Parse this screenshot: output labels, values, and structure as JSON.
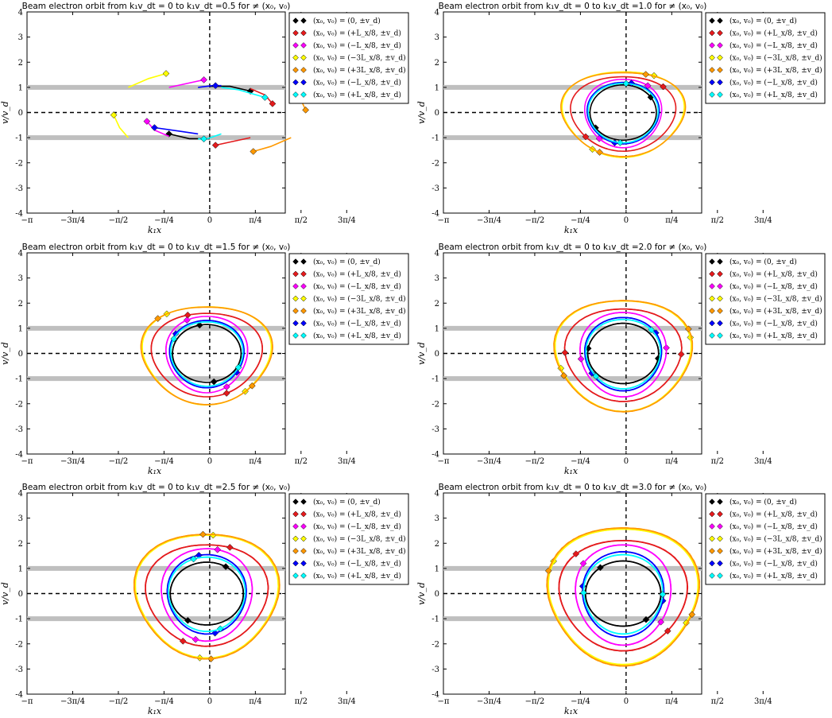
{
  "figure": {
    "background": "#ffffff",
    "band_color": "#bfbfbf"
  },
  "chart_data": [
    {
      "type": "line",
      "title": "Beam electron orbit from k₁v_dt = 0 to k₁v_dt =0.5 for ≠ (x₀, v₀)",
      "xlabel": "k₁x",
      "ylabel": "v/v_d",
      "xlim": [
        -3.1416,
        1.3
      ],
      "ylim": [
        -4,
        4
      ],
      "xticks": [
        "−π",
        "−3π/4",
        "−π/2",
        "−π/4",
        "0",
        "π/4",
        "π/2",
        "3π/4"
      ],
      "yticks": [
        "-4",
        "-3",
        "-2",
        "-1",
        "0",
        "1",
        "2",
        "3",
        "4"
      ],
      "grid": false,
      "legend": "outside-right",
      "bands": [
        1,
        -1
      ],
      "series": [
        {
          "name": "(x₀, v₀) = (0, ±v_d)",
          "color": "#000000",
          "points": [
            [
              0.7,
              0.85
            ],
            [
              0.35,
              1.04
            ],
            [
              0,
              1.04
            ]
          ],
          "points2": [
            [
              -0.7,
              -0.85
            ],
            [
              -0.35,
              -1.04
            ],
            [
              0,
              -1.04
            ]
          ],
          "start": [
            0,
            1
          ],
          "marker": [
            0.7,
            0.85
          ],
          "marker2": [
            -0.7,
            -0.85
          ]
        },
        {
          "name": "(x₀, v₀) = (+L_x/8, ±v_d)",
          "color": "#e41a1c",
          "points": [
            [
              0.7,
              0.95
            ],
            [
              0.95,
              0.7
            ],
            [
              1.08,
              0.35
            ]
          ],
          "points2": [
            [
              0.7,
              -1.0
            ],
            [
              0.4,
              -1.15
            ],
            [
              0.1,
              -1.3
            ]
          ],
          "marker": [
            1.08,
            0.35
          ],
          "marker2": [
            0.1,
            -1.3
          ]
        },
        {
          "name": "(x₀, v₀) = (−L_x/8, ±v_d)",
          "color": "#ff00ff",
          "points": [
            [
              -0.7,
              1.0
            ],
            [
              -0.4,
              1.15
            ],
            [
              -0.1,
              1.3
            ]
          ],
          "points2": [
            [
              -0.7,
              -0.95
            ],
            [
              -0.95,
              -0.7
            ],
            [
              -1.08,
              -0.35
            ]
          ],
          "marker": [
            -0.1,
            1.3
          ],
          "marker2": [
            -1.08,
            -0.35
          ]
        },
        {
          "name": "(x₀, v₀) = (−3L_x/8, ±v_d)",
          "color": "#ffff00",
          "points": [
            [
              -1.4,
              1.0
            ],
            [
              -1.05,
              1.35
            ],
            [
              -0.75,
              1.55
            ]
          ],
          "points2": [
            [
              -1.4,
              -1.0
            ],
            [
              -1.55,
              -0.6
            ],
            [
              -1.65,
              -0.1
            ]
          ],
          "marker": [
            -0.75,
            1.55
          ],
          "marker2": [
            -1.65,
            -0.1
          ]
        },
        {
          "name": "(x₀, v₀) = (+3L_x/8, ±v_d)",
          "color": "#ff9900",
          "points": [
            [
              1.4,
              1.0
            ],
            [
              1.55,
              0.6
            ],
            [
              1.65,
              0.1
            ]
          ],
          "points2": [
            [
              1.4,
              -1.0
            ],
            [
              1.05,
              -1.35
            ],
            [
              0.75,
              -1.55
            ]
          ],
          "marker": [
            1.65,
            0.1
          ],
          "marker2": [
            0.75,
            -1.55
          ]
        },
        {
          "name": "(x₀, v₀) = (−L_x/8, ±v_d)",
          "color": "#0000ff",
          "points": [
            [
              -0.2,
              1.0
            ],
            [
              0.05,
              1.07
            ],
            [
              0.2,
              1.07
            ]
          ],
          "points2": [
            [
              -0.2,
              -0.85
            ],
            [
              -0.5,
              -0.75
            ],
            [
              -0.95,
              -0.6
            ]
          ],
          "marker": [
            0.1,
            1.07
          ],
          "marker2": [
            -0.95,
            -0.6
          ]
        },
        {
          "name": "(x₀, v₀) = (+L_x/8, ±v_d)",
          "color": "#00ffff",
          "points": [
            [
              0.2,
              1.0
            ],
            [
              0.5,
              0.9
            ],
            [
              0.95,
              0.6
            ]
          ],
          "points2": [
            [
              0.2,
              -0.85
            ],
            [
              -0.05,
              -1.05
            ],
            [
              -0.2,
              -1.05
            ]
          ],
          "marker": [
            0.95,
            0.6
          ],
          "marker2": [
            -0.1,
            -1.05
          ]
        }
      ]
    },
    {
      "type": "line",
      "title": "Beam electron orbit from k₁v_dt = 0 to k₁v_dt =1.0 for ≠ (x₀, v₀)",
      "xlabel": "k₁x",
      "ylabel": "v/v_d",
      "xlim": [
        -3.1416,
        1.3
      ],
      "ylim": [
        -4,
        4
      ],
      "xticks": [
        "−π",
        "−3π/4",
        "−π/2",
        "−π/4",
        "0",
        "π/4",
        "π/2",
        "3π/4"
      ],
      "yticks": [
        "-4",
        "-3",
        "-2",
        "-1",
        "0",
        "1",
        "2",
        "3",
        "4"
      ],
      "grid": false,
      "legend": "outside-right",
      "bands": [
        1,
        -1
      ],
      "trajectories": "orbits_t1.0"
    },
    {
      "type": "line",
      "title": "Beam electron orbit from k₁v_dt = 0 to k₁v_dt =1.5 for ≠ (x₀, v₀)",
      "xlabel": "k₁x",
      "ylabel": "v/v_d",
      "xlim": [
        -3.1416,
        1.3
      ],
      "ylim": [
        -4,
        4
      ],
      "xticks": [
        "−π",
        "−3π/4",
        "−π/2",
        "−π/4",
        "0",
        "π/4",
        "π/2",
        "3π/4"
      ],
      "yticks": [
        "-4",
        "-3",
        "-2",
        "-1",
        "0",
        "1",
        "2",
        "3",
        "4"
      ],
      "grid": false,
      "legend": "outside-right",
      "bands": [
        1,
        -1
      ],
      "trajectories": "orbits_t1.5"
    },
    {
      "type": "line",
      "title": "Beam electron orbit from k₁v_dt = 0 to k₁v_dt =2.0 for ≠ (x₀, v₀)",
      "xlabel": "k₁x",
      "ylabel": "v/v_d",
      "xlim": [
        -3.1416,
        1.3
      ],
      "ylim": [
        -4,
        4
      ],
      "xticks": [
        "−π",
        "−3π/4",
        "−π/2",
        "−π/4",
        "0",
        "π/4",
        "π/2",
        "3π/4"
      ],
      "yticks": [
        "-4",
        "-3",
        "-2",
        "-1",
        "0",
        "1",
        "2",
        "3",
        "4"
      ],
      "grid": false,
      "legend": "outside-right",
      "bands": [
        1,
        -1
      ],
      "trajectories": "orbits_t2.0"
    },
    {
      "type": "line",
      "title": "Beam electron orbit from k₁v_dt = 0 to k₁v_dt =2.5 for ≠ (x₀, v₀)",
      "xlabel": "k₁x",
      "ylabel": "v/v_d",
      "xlim": [
        -3.1416,
        1.3
      ],
      "ylim": [
        -4,
        4
      ],
      "xticks": [
        "−π",
        "−3π/4",
        "−π/2",
        "−π/4",
        "0",
        "π/4",
        "π/2",
        "3π/4"
      ],
      "yticks": [
        "-4",
        "-3",
        "-2",
        "-1",
        "0",
        "1",
        "2",
        "3",
        "4"
      ],
      "grid": false,
      "legend": "outside-right",
      "bands": [
        1,
        -1
      ],
      "trajectories": "orbits_t2.5"
    },
    {
      "type": "line",
      "title": "Beam electron orbit from k₁v_dt = 0 to k₁v_dt =3.0 for ≠ (x₀, v₀)",
      "xlabel": "k₁x",
      "ylabel": "v/v_d",
      "xlim": [
        -3.1416,
        1.3
      ],
      "ylim": [
        -4,
        4
      ],
      "xticks": [
        "−π",
        "−3π/4",
        "−π/2",
        "−π/4",
        "0",
        "π/4",
        "π/2",
        "3π/4"
      ],
      "yticks": [
        "-4",
        "-3",
        "-2",
        "-1",
        "0",
        "1",
        "2",
        "3",
        "4"
      ],
      "grid": false,
      "legend": "outside-right",
      "bands": [
        1,
        -1
      ],
      "trajectories": "orbits_t3.0"
    }
  ],
  "legend_entries": [
    {
      "label": "(x₀, v₀) = (0, ±v_d)",
      "color": "#000000"
    },
    {
      "label": "(x₀, v₀) = (+L_x/8, ±v_d)",
      "color": "#e41a1c"
    },
    {
      "label": "(x₀, v₀) = (−L_x/8, ±v_d)",
      "color": "#ff00ff"
    },
    {
      "label": "(x₀, v₀) = (−3L_x/8, ±v_d)",
      "color": "#ffff00"
    },
    {
      "label": "(x₀, v₀) = (+3L_x/8, ±v_d)",
      "color": "#ff9900"
    },
    {
      "label": "(x₀, v₀) = (−L_x/8, ±v_d)",
      "color": "#0000ff"
    },
    {
      "label": "(x₀, v₀) = (+L_x/8, ±v_d)",
      "color": "#00ffff"
    }
  ]
}
